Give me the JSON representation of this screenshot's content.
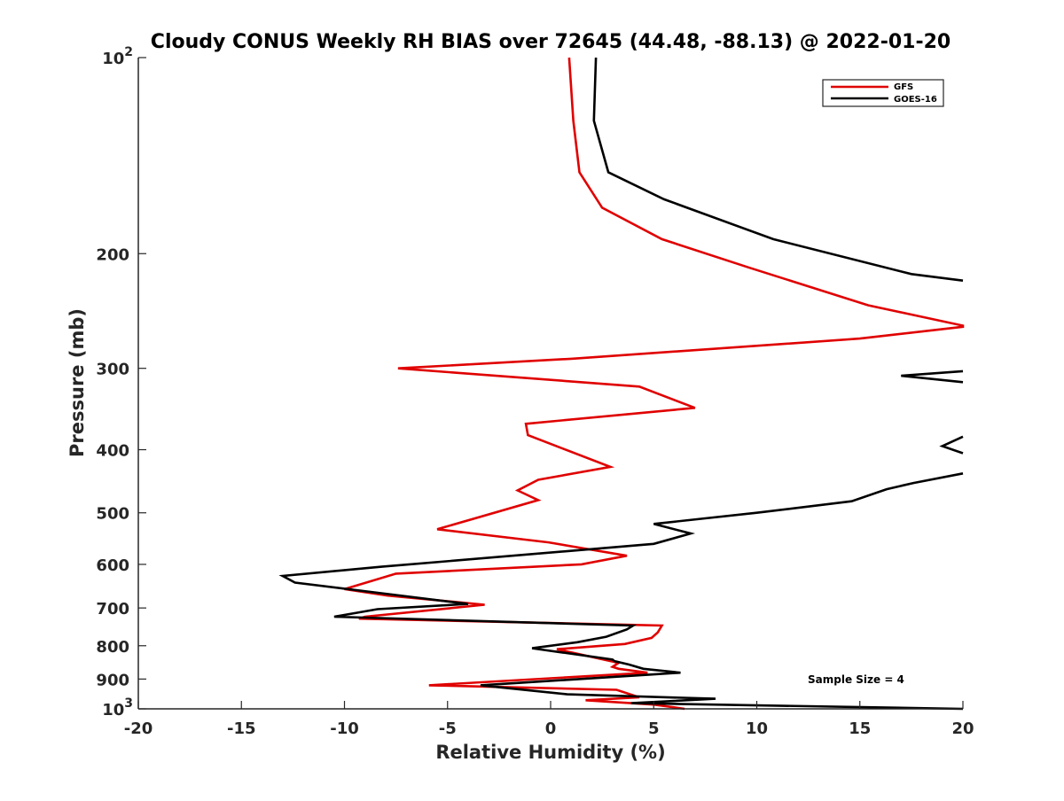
{
  "chart_data": {
    "type": "line",
    "title": "Cloudy CONUS Weekly RH BIAS over 72645 (44.48, -88.13) @ 2022-01-20",
    "xlabel": "Relative Humidity (%)",
    "ylabel": "Pressure (mb)",
    "xlim": [
      -20,
      20
    ],
    "ylim": [
      100,
      1000
    ],
    "yscale": "log",
    "y_reversed": true,
    "grid": false,
    "legend_position": "top-right",
    "annotation": "Sample Size = 4",
    "x_ticks": [
      "-20",
      "-15",
      "-10",
      "-5",
      "0",
      "5",
      "10",
      "15",
      "20"
    ],
    "y_ticks": [
      {
        "value": 100,
        "base": "10",
        "exp": "2"
      },
      {
        "value": 200,
        "label": "200"
      },
      {
        "value": 300,
        "label": "300"
      },
      {
        "value": 400,
        "label": "400"
      },
      {
        "value": 500,
        "label": "500"
      },
      {
        "value": 600,
        "label": "600"
      },
      {
        "value": 700,
        "label": "700"
      },
      {
        "value": 800,
        "label": "800"
      },
      {
        "value": 900,
        "label": "900"
      },
      {
        "value": 1000,
        "base": "10",
        "exp": "3"
      }
    ],
    "series": [
      {
        "name": "GFS",
        "color": "#e00000",
        "points": [
          [
            0.9,
            100
          ],
          [
            1.1,
            125
          ],
          [
            1.4,
            150
          ],
          [
            2.5,
            170
          ],
          [
            5.4,
            190
          ],
          [
            9.6,
            210
          ],
          [
            15.4,
            240
          ],
          [
            20,
            258
          ],
          [
            20,
            259
          ],
          [
            15.0,
            270
          ],
          [
            1.0,
            290
          ],
          [
            -7.4,
            300
          ],
          [
            4.3,
            320
          ],
          [
            7.0,
            345
          ],
          [
            -1.2,
            365
          ],
          [
            -1.1,
            380
          ],
          [
            2.9,
            425
          ],
          [
            -0.6,
            445
          ],
          [
            -1.6,
            462
          ],
          [
            -0.6,
            478
          ],
          [
            -5.5,
            530
          ],
          [
            -0.1,
            555
          ],
          [
            3.7,
            582
          ],
          [
            1.5,
            600
          ],
          [
            -7.5,
            620
          ],
          [
            -10.0,
            655
          ],
          [
            -7.9,
            670
          ],
          [
            -3.2,
            692
          ],
          [
            -9.0,
            722
          ],
          [
            -9.3,
            727
          ],
          [
            5.4,
            745
          ],
          [
            5.2,
            763
          ],
          [
            4.9,
            778
          ],
          [
            3.6,
            795
          ],
          [
            0.3,
            810
          ],
          [
            3.3,
            850
          ],
          [
            3.0,
            862
          ],
          [
            3.3,
            868
          ],
          [
            4.7,
            880
          ],
          [
            -5.9,
            920
          ],
          [
            3.2,
            935
          ],
          [
            4.3,
            960
          ],
          [
            1.7,
            970
          ],
          [
            5.0,
            985
          ],
          [
            6.5,
            1000
          ]
        ]
      },
      {
        "name": "GOES-16",
        "color": "#000000",
        "points": [
          [
            2.2,
            100
          ],
          [
            2.1,
            125
          ],
          [
            2.8,
            150
          ],
          [
            5.5,
            165
          ],
          [
            10.8,
            190
          ],
          [
            17.5,
            215
          ],
          [
            20,
            220
          ],
          null,
          [
            20,
            303
          ],
          [
            17.0,
            308
          ],
          [
            20,
            315
          ],
          null,
          [
            20,
            382
          ],
          [
            19.0,
            395
          ],
          [
            20,
            405
          ],
          null,
          [
            20,
            435
          ],
          [
            17.6,
            450
          ],
          [
            16.3,
            460
          ],
          [
            14.6,
            480
          ],
          [
            10.0,
            500
          ],
          [
            5.0,
            520
          ],
          [
            6.8,
            538
          ],
          [
            5.0,
            558
          ],
          [
            -8.2,
            605
          ],
          [
            -13.0,
            625
          ],
          [
            -12.4,
            640
          ],
          [
            -4.0,
            690
          ],
          [
            -8.4,
            703
          ],
          [
            -10.5,
            722
          ],
          [
            4.0,
            745
          ],
          [
            3.7,
            755
          ],
          [
            2.7,
            775
          ],
          [
            1.3,
            790
          ],
          [
            -0.9,
            807
          ],
          [
            3.0,
            840
          ],
          [
            3.1,
            845
          ],
          [
            3.8,
            855
          ],
          [
            4.5,
            868
          ],
          [
            6.3,
            880
          ],
          [
            -3.4,
            920
          ],
          [
            0.8,
            950
          ],
          [
            8.0,
            965
          ],
          [
            3.9,
            980
          ],
          [
            20,
            1000
          ]
        ]
      }
    ]
  }
}
